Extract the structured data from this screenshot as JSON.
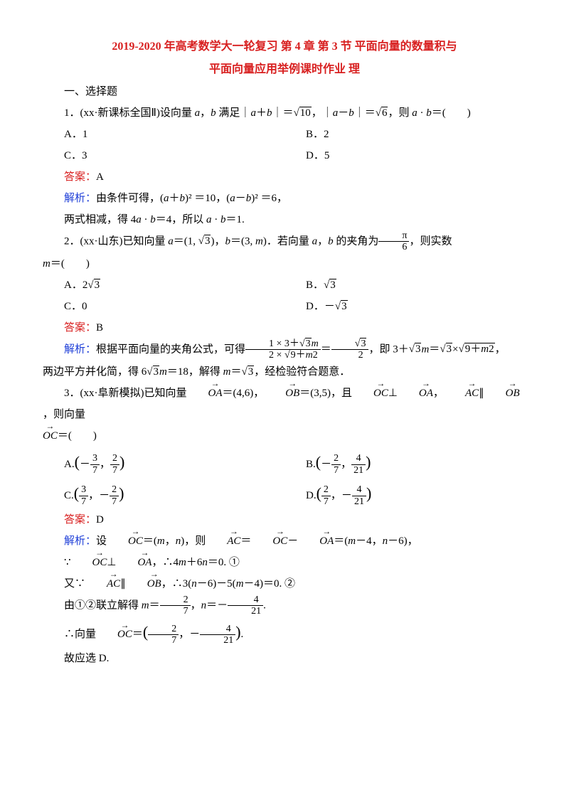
{
  "title": {
    "line1": "2019-2020 年高考数学大一轮复习 第 4 章 第 3 节 平面向量的数量积与",
    "line2": "平面向量应用举例课时作业 理",
    "color": "#d82020",
    "fontsize": 16,
    "fontweight": "bold"
  },
  "section_heading": "一、选择题",
  "colors": {
    "answer_label": "#d82020",
    "analysis_label": "#2040d8",
    "text": "#000000",
    "background": "#ffffff"
  },
  "labels": {
    "answer": "答案：",
    "analysis": "解析：",
    "therefore_select": "故应选 D."
  },
  "questions": [
    {
      "num": "1",
      "stem_pre": "（xx·新课标全国Ⅱ）设向量 ",
      "stem_mid": "a，b 满足 |a＋b| ＝√10，|a－b|＝√6，则 a · b＝(　　)",
      "options": {
        "A": "1",
        "B": "2",
        "C": "3",
        "D": "5"
      },
      "answer": "A",
      "analysis": "由条件可得，(a＋b)² ＝10，(a－b)² ＝6，",
      "analysis2": "两式相减，得 4a · b＝4，所以 a · b＝1."
    },
    {
      "num": "2",
      "stem": "（xx·山东）已知向量 a＝(1, √3)，b＝(3, m)．若向量 a，b 的夹角为 π/6，则实数 m＝(　　)",
      "options": {
        "A": "2√3",
        "B": "√3",
        "C": "0",
        "D": "－√3"
      },
      "answer": "B",
      "analysis_text": "根据平面向量的夹角公式，可得 (1×3＋√3m)/(2×√(9＋m²))＝√3/2，即 3＋√3m＝√3×√(9＋m²)，两边平方并化简，得 6√3m＝18，解得 m＝√3，经检验符合题意．"
    },
    {
      "num": "3",
      "stem": "（xx·阜新模拟）已知向量 OA＝(4,6)，OB＝(3,5)，且 OC⊥OA，AC∥OB，则向量 OC＝(　　)",
      "options": {
        "A": "(－3/7, 2/7)",
        "B": "(－2/7, 4/21)",
        "C": "(3/7, －2/7)",
        "D": "(2/7, －4/21)"
      },
      "answer": "D",
      "analysis_lines": [
        "设 OC＝(m, n)，则 AC＝OC－OA＝(m－4，n－6)，",
        "∵OC⊥OA，∴4m＋6n＝0. ①",
        "又∵AC∥OB，∴3(n－6)－5(m－4)＝0. ②",
        "由①②联立解得 m＝2/7，n＝－4/21.",
        "∴向量 OC＝(2/7, －4/21)."
      ]
    }
  ]
}
